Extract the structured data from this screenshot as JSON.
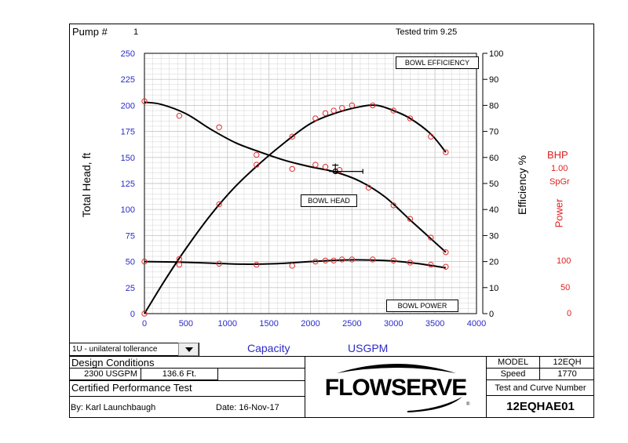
{
  "header": {
    "pump_label": "Pump #",
    "pump_number": "1",
    "tested_trim": "Tested trim 9.25"
  },
  "left_axis_title": "Total Head, ft",
  "right_axis_title": "Efficiency %",
  "power_labels": {
    "bhp": "BHP",
    "spgr_value": "1.00",
    "spgr": "SpGr",
    "power": "Power",
    "ticks": [
      "100",
      "50",
      "0"
    ]
  },
  "curve_labels": {
    "efficiency": "BOWL EFFICIENCY",
    "head": "BOWL HEAD",
    "power": "BOWL POWER"
  },
  "capacity_label": "Capacity",
  "units_label": "USGPM",
  "dropdown": {
    "value": "1U - unilateral tollerance"
  },
  "design": {
    "title": "Design Conditions",
    "flow": "2300 USGPM",
    "head": "136.6 Ft."
  },
  "certified": "Certified Performance Test",
  "by": "By: Karl Launchbaugh",
  "date": "Date:  16-Nov-17",
  "logo_text": "FLOWSERVE",
  "info": {
    "model_label": "MODEL",
    "model_value": "12EQH",
    "speed_label": "Speed",
    "speed_value": "1770",
    "test_label": "Test and Curve Number",
    "test_value": "12EQHAE01"
  },
  "colors": {
    "grid": "#c8c8c8",
    "points": "#e03030",
    "axis_blue": "#2a2ac8",
    "power_red": "#e02020"
  },
  "chart_data": {
    "type": "line",
    "xlim": [
      0,
      4000
    ],
    "ylim": [
      0,
      250
    ],
    "y2lim": [
      0,
      100
    ],
    "x_ticks": [
      0,
      500,
      1000,
      1500,
      2000,
      2500,
      3000,
      3500,
      4000
    ],
    "y_ticks": [
      0,
      25,
      50,
      75,
      100,
      125,
      150,
      175,
      200,
      225,
      250
    ],
    "y2_ticks": [
      0,
      10,
      20,
      30,
      40,
      50,
      60,
      70,
      80,
      90,
      100
    ],
    "grid": true,
    "series": [
      {
        "name": "BOWL HEAD",
        "points_x": [
          0,
          420,
          900,
          1350,
          1780,
          2060,
          2180,
          2350,
          2700,
          3000,
          3200,
          3450,
          3630
        ],
        "points_y": [
          204,
          190,
          179,
          143,
          139,
          143,
          141,
          138,
          121,
          104,
          91,
          73,
          59
        ],
        "curve_x": [
          0,
          200,
          500,
          800,
          1100,
          1400,
          1700,
          2000,
          2300,
          2600,
          2900,
          3200,
          3450,
          3630
        ],
        "curve_y": [
          203,
          201,
          192,
          177,
          164,
          155,
          147,
          141,
          136,
          127,
          112,
          90,
          72,
          59
        ]
      },
      {
        "name": "BOWL EFFICIENCY",
        "points_x": [
          0,
          420,
          900,
          1350,
          1780,
          2060,
          2180,
          2280,
          2380,
          2500,
          2750,
          3000,
          3200,
          3450,
          3630
        ],
        "points_y": [
          0,
          21,
          42,
          61,
          68,
          75,
          77,
          78,
          79,
          80,
          80,
          78,
          75,
          68,
          62
        ],
        "curve_x": [
          0,
          250,
          500,
          800,
          1100,
          1400,
          1700,
          2000,
          2300,
          2600,
          2800,
          3000,
          3200,
          3450,
          3630
        ],
        "curve_y": [
          0,
          13,
          25,
          38,
          49,
          58,
          66,
          73,
          77,
          79.5,
          80,
          78,
          75,
          69,
          62
        ]
      },
      {
        "name": "BOWL POWER",
        "points_x": [
          0,
          420,
          900,
          1350,
          1780,
          2060,
          2180,
          2280,
          2380,
          2500,
          2750,
          3000,
          3200,
          3450,
          3630
        ],
        "points_y": [
          50,
          47,
          48,
          47,
          46,
          50,
          51,
          51,
          52,
          52,
          52,
          51,
          49,
          47,
          45
        ],
        "curve_x": [
          0,
          400,
          800,
          1200,
          1600,
          2000,
          2400,
          2700,
          3000,
          3300,
          3630
        ],
        "curve_y": [
          50,
          49.5,
          48.5,
          47.5,
          48,
          50,
          51.5,
          51.5,
          50.5,
          48,
          44
        ]
      }
    ],
    "design_point": {
      "x": 2300,
      "y": 136.6
    }
  }
}
